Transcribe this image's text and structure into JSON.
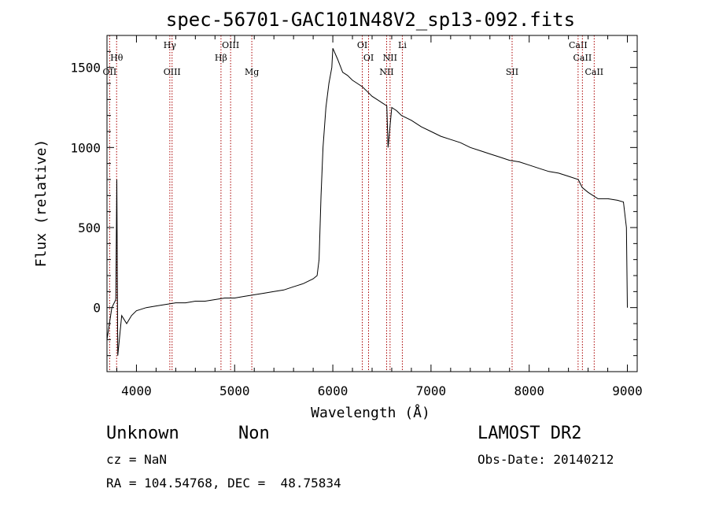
{
  "chart_data": {
    "type": "line",
    "title": "spec-56701-GAC101N48V2_sp13-092.fits",
    "xlabel": "Wavelength (Å)",
    "ylabel": "Flux (relative)",
    "xlim": [
      3700,
      9100
    ],
    "ylim": [
      -400,
      1700
    ],
    "x_ticks": [
      4000,
      5000,
      6000,
      7000,
      8000,
      9000
    ],
    "y_ticks": [
      0,
      500,
      1000,
      1500
    ],
    "grid": false,
    "series": [
      {
        "color": "#000000",
        "x": [
          3700,
          3750,
          3790,
          3800,
          3810,
          3850,
          3900,
          3950,
          4000,
          4100,
          4200,
          4300,
          4400,
          4500,
          4600,
          4700,
          4800,
          4900,
          5000,
          5100,
          5200,
          5300,
          5400,
          5500,
          5600,
          5700,
          5800,
          5840,
          5860,
          5880,
          5900,
          5930,
          5960,
          5990,
          6000,
          6050,
          6100,
          6150,
          6200,
          6250,
          6300,
          6350,
          6400,
          6450,
          6500,
          6550,
          6563,
          6600,
          6650,
          6700,
          6800,
          6900,
          7000,
          7100,
          7200,
          7300,
          7400,
          7500,
          7600,
          7700,
          7800,
          7900,
          8000,
          8100,
          8200,
          8300,
          8400,
          8500,
          8540,
          8600,
          8700,
          8800,
          8900,
          8960,
          8990,
          9000
        ],
        "y": [
          -200,
          0,
          50,
          800,
          -300,
          -50,
          -100,
          -50,
          -20,
          0,
          10,
          20,
          30,
          30,
          40,
          40,
          50,
          60,
          60,
          70,
          80,
          90,
          100,
          110,
          130,
          150,
          180,
          200,
          300,
          700,
          1000,
          1250,
          1400,
          1500,
          1620,
          1550,
          1470,
          1450,
          1420,
          1400,
          1380,
          1350,
          1320,
          1300,
          1280,
          1260,
          1000,
          1250,
          1230,
          1200,
          1170,
          1130,
          1100,
          1070,
          1050,
          1030,
          1000,
          980,
          960,
          940,
          920,
          910,
          890,
          870,
          850,
          840,
          820,
          800,
          750,
          720,
          680,
          680,
          670,
          660,
          500,
          0
        ]
      }
    ],
    "lines": [
      {
        "label": "Hθ",
        "x": 3798,
        "row": 1
      },
      {
        "label": "OII",
        "x": 3727,
        "row": 2
      },
      {
        "label": "Hγ",
        "x": 4340,
        "row": 0
      },
      {
        "label": "OIII",
        "x": 4363,
        "row": 2
      },
      {
        "label": "Hβ",
        "x": 4861,
        "row": 1
      },
      {
        "label": "OIII",
        "x": 4959,
        "row": 0
      },
      {
        "label": "Mg",
        "x": 5175,
        "row": 2
      },
      {
        "label": "OI",
        "x": 6300,
        "row": 0
      },
      {
        "label": "OI",
        "x": 6364,
        "row": 1
      },
      {
        "label": "NII",
        "x": 6548,
        "row": 2
      },
      {
        "label": "NII",
        "x": 6583,
        "row": 1
      },
      {
        "label": "Li",
        "x": 6708,
        "row": 0
      },
      {
        "label": "SII",
        "x": 7826,
        "row": 2
      },
      {
        "label": "CaII",
        "x": 8498,
        "row": 0
      },
      {
        "label": "CaII",
        "x": 8542,
        "row": 1
      },
      {
        "label": "CaII",
        "x": 8662,
        "row": 2
      }
    ]
  },
  "info": {
    "object_class": "Unknown",
    "object_subclass": "Non",
    "survey": "LAMOST DR2",
    "cz": "cz = NaN",
    "obs_date": "Obs-Date: 20140212",
    "coords": "RA = 104.54768, DEC =  48.75834"
  }
}
